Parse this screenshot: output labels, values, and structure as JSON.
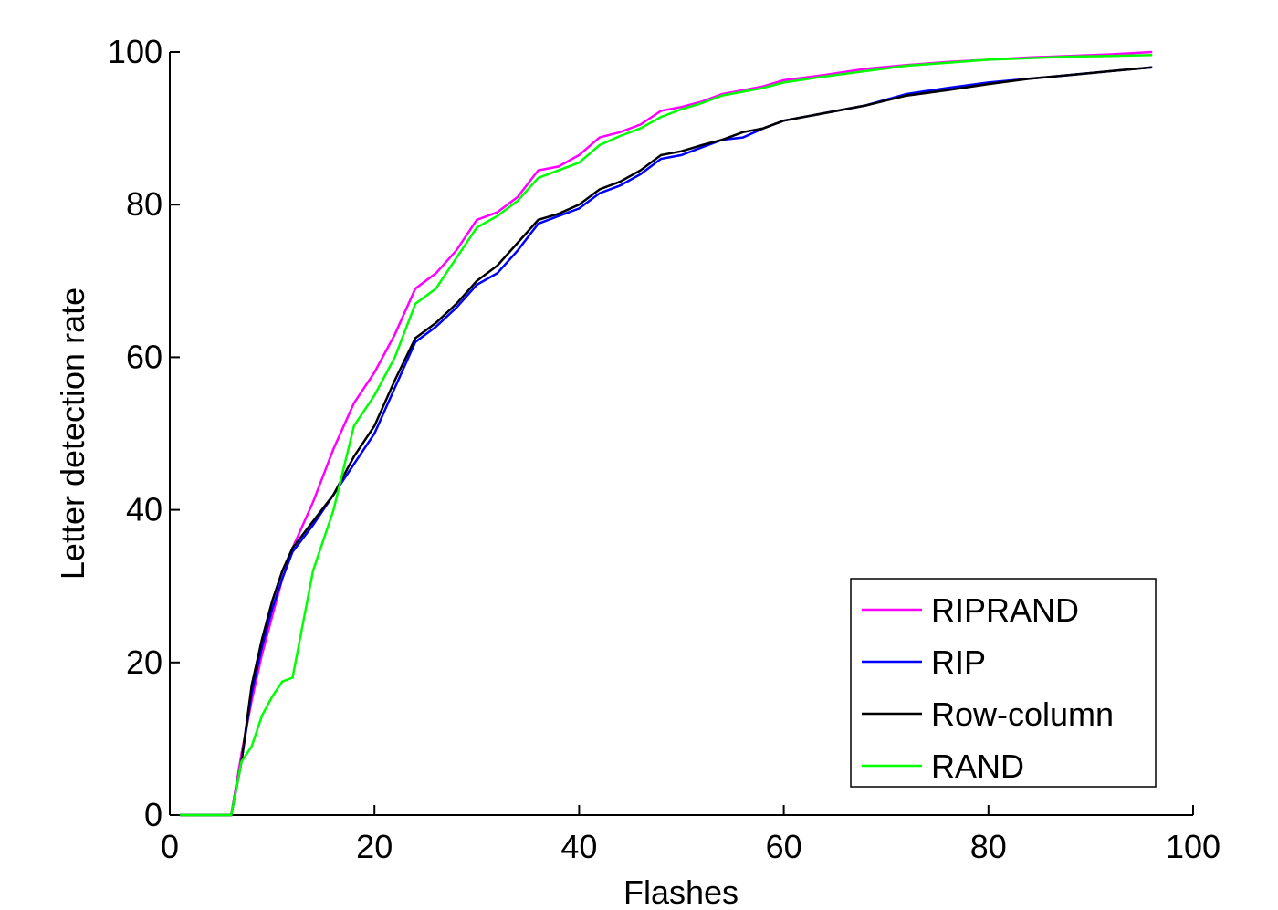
{
  "chart_data": {
    "type": "line",
    "x_label": "Flashes",
    "y_label": "Letter detection rate",
    "x": [
      1,
      6,
      7,
      8,
      9,
      10,
      11,
      12,
      14,
      16,
      18,
      20,
      22,
      24,
      26,
      28,
      30,
      32,
      34,
      36,
      38,
      40,
      42,
      44,
      46,
      48,
      50,
      52,
      54,
      56,
      58,
      60,
      64,
      68,
      72,
      76,
      80,
      84,
      88,
      92,
      96
    ],
    "series": [
      {
        "name": "RIPRAND",
        "color": "#ff00ff",
        "values": [
          0,
          0,
          8,
          15,
          21,
          26,
          31,
          35,
          41,
          48,
          54,
          58,
          63,
          69,
          71,
          74,
          78,
          79,
          81,
          84.5,
          85,
          86.5,
          88.8,
          89.5,
          90.5,
          92.3,
          92.8,
          93.5,
          94.5,
          95,
          95.5,
          96.3,
          97,
          97.8,
          98.3,
          98.7,
          99,
          99.3,
          99.5,
          99.7,
          100
        ]
      },
      {
        "name": "RIP",
        "color": "#0000ff",
        "values": [
          0,
          0,
          7,
          16,
          22,
          27,
          31,
          34.5,
          38,
          42,
          46,
          50,
          56,
          62,
          64,
          66.5,
          69.5,
          71,
          74,
          77.5,
          78.5,
          79.5,
          81.5,
          82.5,
          84,
          86,
          86.5,
          87.5,
          88.5,
          88.8,
          90,
          91,
          92,
          93,
          94.5,
          95.3,
          96,
          96.5,
          97,
          97.5,
          98
        ]
      },
      {
        "name": "Row-column",
        "color": "#000000",
        "values": [
          0,
          0,
          7,
          17,
          23,
          28,
          32,
          35,
          38.5,
          42,
          47,
          51,
          57,
          62.5,
          64.5,
          67,
          70,
          72,
          75,
          78,
          78.8,
          80,
          82,
          83,
          84.5,
          86.5,
          87,
          87.8,
          88.5,
          89.5,
          90,
          91,
          92,
          93,
          94.3,
          95,
          95.8,
          96.5,
          97,
          97.5,
          98
        ]
      },
      {
        "name": "RAND",
        "color": "#00ff00",
        "values": [
          0,
          0,
          7,
          9,
          13,
          15.5,
          17.5,
          18,
          32,
          40,
          51,
          55,
          60,
          67,
          69,
          73,
          77,
          78.5,
          80.5,
          83.5,
          84.5,
          85.5,
          87.8,
          89,
          90,
          91.5,
          92.5,
          93.3,
          94.3,
          94.8,
          95.3,
          96,
          96.8,
          97.5,
          98.2,
          98.6,
          99,
          99.2,
          99.4,
          99.5,
          99.6
        ]
      }
    ],
    "xlim": [
      0,
      100
    ],
    "xticks": [
      0,
      20,
      40,
      60,
      80,
      100
    ],
    "ylim": [
      0,
      100
    ],
    "yticks": [
      0,
      20,
      40,
      60,
      80,
      100
    ],
    "grid": false,
    "legend": "lower right"
  }
}
